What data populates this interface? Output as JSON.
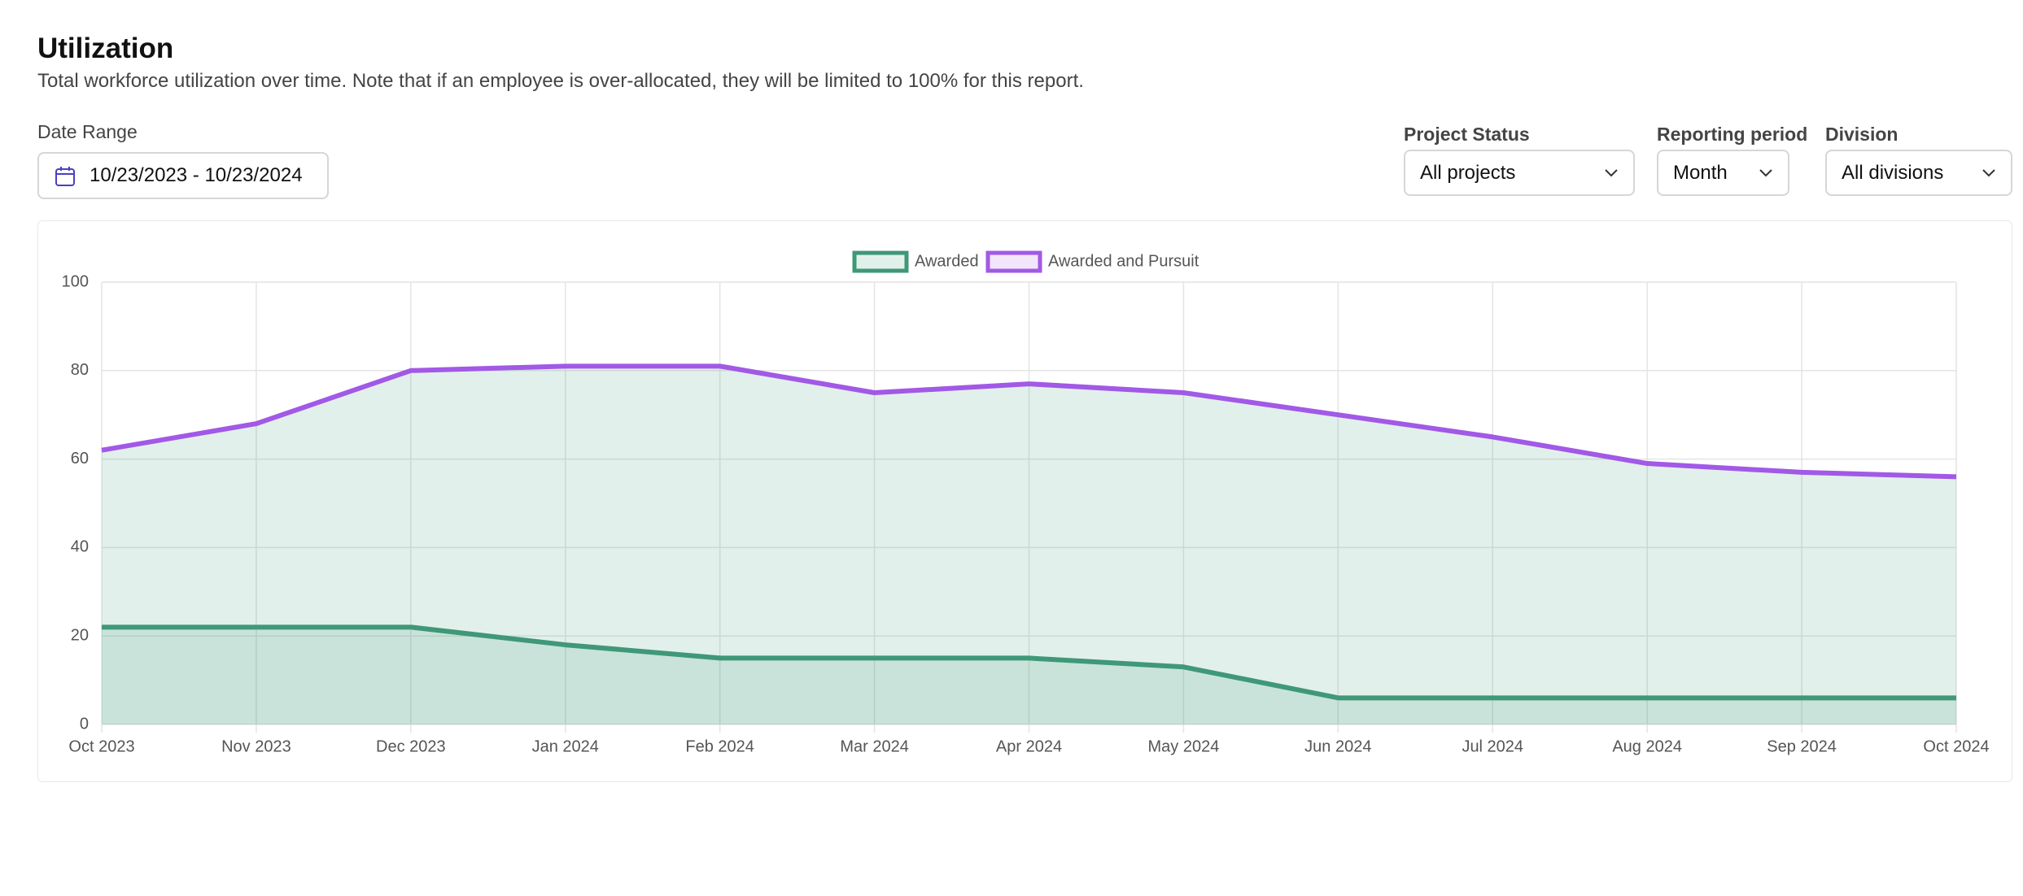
{
  "header": {
    "title": "Utilization",
    "description": "Total workforce utilization over time. Note that if an employee is over-allocated, they will be limited to 100% for this report."
  },
  "filters": {
    "date_range": {
      "label": "Date Range",
      "value": "10/23/2023 - 10/23/2024"
    },
    "project_status": {
      "label": "Project Status",
      "value": "All projects"
    },
    "reporting_period": {
      "label": "Reporting period",
      "value": "Month"
    },
    "division": {
      "label": "Division",
      "value": "All divisions"
    }
  },
  "chart_data": {
    "type": "line",
    "categories": [
      "Oct 2023",
      "Nov 2023",
      "Dec 2023",
      "Jan 2024",
      "Feb 2024",
      "Mar 2024",
      "Apr 2024",
      "May 2024",
      "Jun 2024",
      "Jul 2024",
      "Aug 2024",
      "Sep 2024",
      "Oct 2024"
    ],
    "series": [
      {
        "name": "Awarded",
        "color": "#3f9877",
        "values": [
          22,
          22,
          22,
          18,
          15,
          15,
          15,
          13,
          6,
          6,
          6,
          6,
          6
        ]
      },
      {
        "name": "Awarded and Pursuit",
        "color": "#a259e6",
        "values": [
          62,
          68,
          80,
          81,
          81,
          75,
          77,
          75,
          70,
          65,
          59,
          57,
          56
        ]
      }
    ],
    "area_color": "#3f9877",
    "ylim": [
      0,
      100
    ],
    "yticks": [
      0,
      20,
      40,
      60,
      80,
      100
    ],
    "grid": true,
    "legend": "top"
  }
}
